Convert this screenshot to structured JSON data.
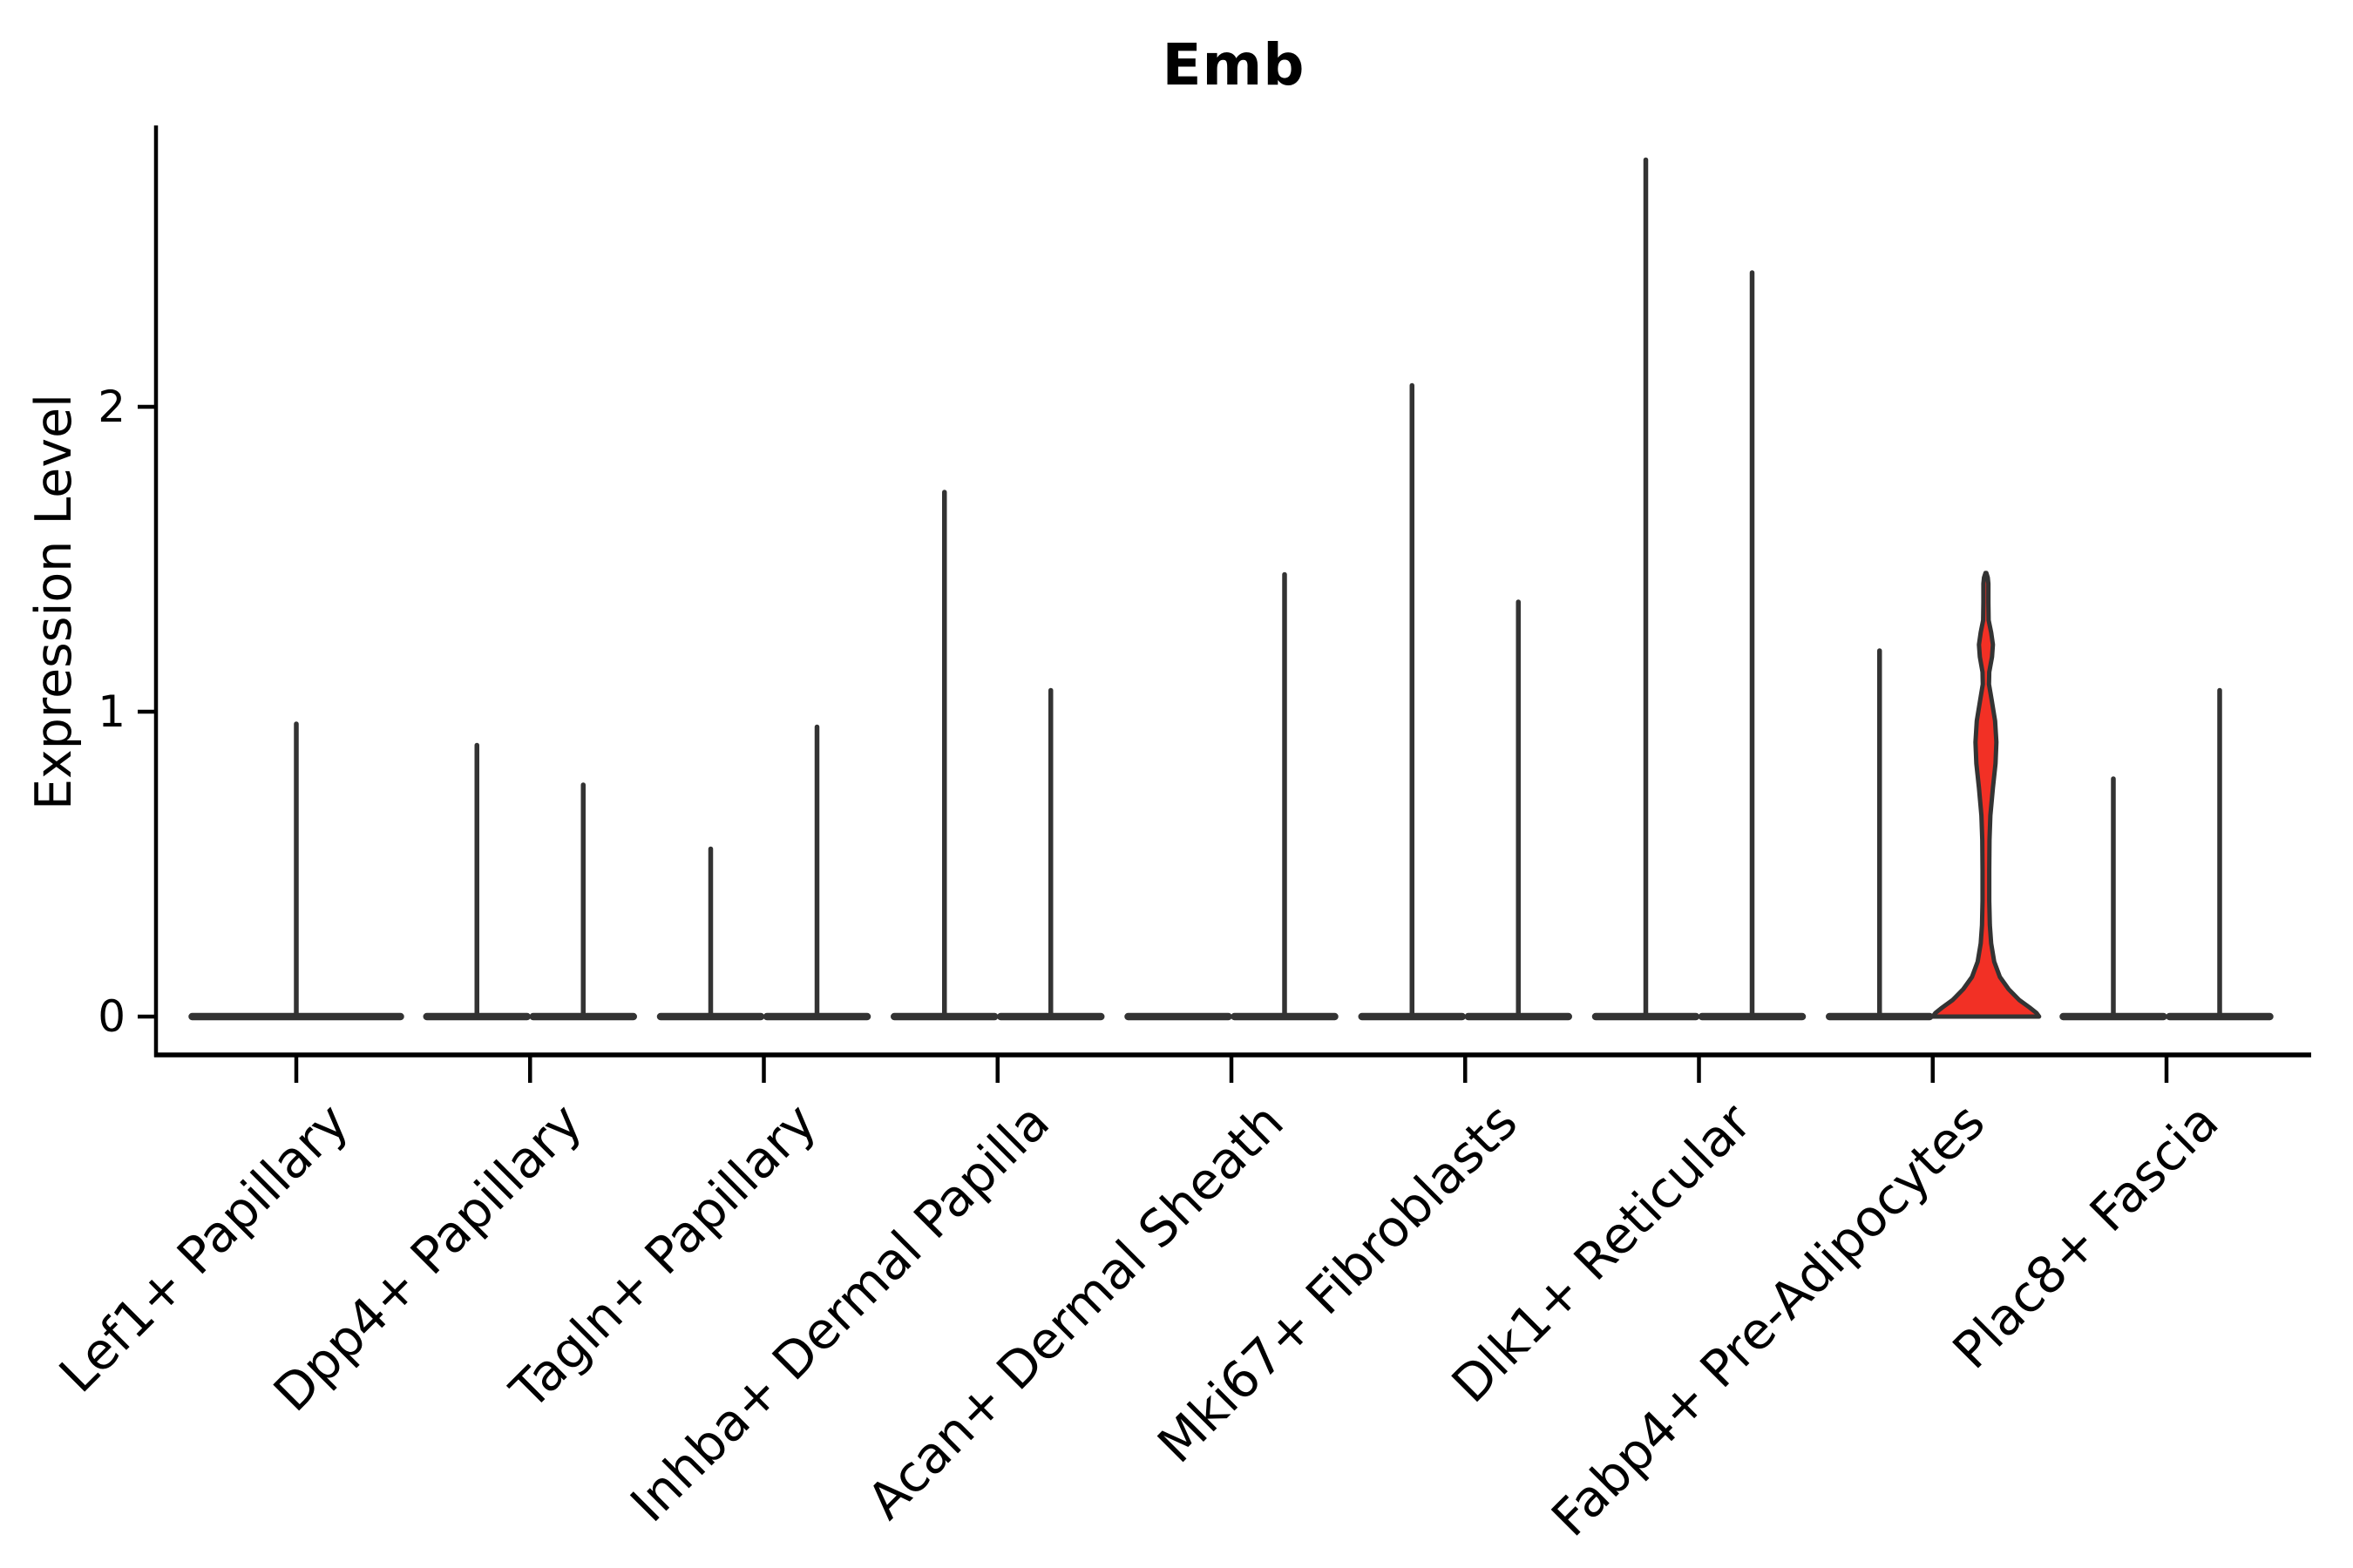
{
  "chart_data": {
    "type": "violin",
    "title": "Emb",
    "ylabel": "Expression Level",
    "xlabel": "",
    "ylim": [
      0,
      2.93
    ],
    "grid": false,
    "legend": "none",
    "yticks": [
      {
        "label": "0",
        "value": 0
      },
      {
        "label": "1",
        "value": 1
      },
      {
        "label": "2",
        "value": 2
      }
    ],
    "categories": [
      "Lef1+ Papillary",
      "Dpp4+ Papillary",
      "Tagln+ Papillary",
      "Inhba+ Dermal Papilla",
      "Acan+ Dermal Sheath",
      "Mki67+ Fibroblasts",
      "Dlk1+ Reticular",
      "Fabp4+ Pre-Adipocytes",
      "Plac8+ Fascia"
    ],
    "violins": [
      {
        "category_index": 0,
        "position": "full",
        "max_value": 0.96,
        "highlighted": false
      },
      {
        "category_index": 1,
        "position": "left",
        "max_value": 0.89,
        "highlighted": false
      },
      {
        "category_index": 1,
        "position": "right",
        "max_value": 0.76,
        "highlighted": false
      },
      {
        "category_index": 2,
        "position": "left",
        "max_value": 0.55,
        "highlighted": false
      },
      {
        "category_index": 2,
        "position": "right",
        "max_value": 0.95,
        "highlighted": false
      },
      {
        "category_index": 3,
        "position": "left",
        "max_value": 1.72,
        "highlighted": false
      },
      {
        "category_index": 3,
        "position": "right",
        "max_value": 1.07,
        "highlighted": false
      },
      {
        "category_index": 4,
        "position": "left",
        "max_value": null,
        "highlighted": false
      },
      {
        "category_index": 4,
        "position": "right",
        "max_value": 1.45,
        "highlighted": false
      },
      {
        "category_index": 5,
        "position": "left",
        "max_value": 2.07,
        "highlighted": false
      },
      {
        "category_index": 5,
        "position": "right",
        "max_value": 1.36,
        "highlighted": false
      },
      {
        "category_index": 6,
        "position": "left",
        "max_value": 2.81,
        "highlighted": false
      },
      {
        "category_index": 6,
        "position": "right",
        "max_value": 2.44,
        "highlighted": false
      },
      {
        "category_index": 7,
        "position": "left",
        "max_value": 1.2,
        "highlighted": false
      },
      {
        "category_index": 7,
        "position": "right",
        "max_value": 1.45,
        "highlighted": true
      },
      {
        "category_index": 8,
        "position": "left",
        "max_value": 0.78,
        "highlighted": false
      },
      {
        "category_index": 8,
        "position": "right",
        "max_value": 1.07,
        "highlighted": false
      }
    ],
    "highlighted_violin_profile": [
      [
        1.455,
        0.5
      ],
      [
        1.44,
        2.2
      ],
      [
        1.42,
        2.8
      ],
      [
        1.36,
        2.8
      ],
      [
        1.3,
        3.2
      ],
      [
        1.26,
        6.0
      ],
      [
        1.22,
        8.0
      ],
      [
        1.18,
        7.0
      ],
      [
        1.13,
        3.8
      ],
      [
        1.09,
        3.6
      ],
      [
        1.04,
        6.5
      ],
      [
        0.97,
        10.5
      ],
      [
        0.9,
        12.0
      ],
      [
        0.83,
        11.0
      ],
      [
        0.75,
        8.0
      ],
      [
        0.66,
        5.2
      ],
      [
        0.58,
        4.2
      ],
      [
        0.48,
        3.8
      ],
      [
        0.38,
        3.8
      ],
      [
        0.3,
        4.5
      ],
      [
        0.24,
        6.0
      ],
      [
        0.18,
        9.5
      ],
      [
        0.13,
        16
      ],
      [
        0.09,
        26
      ],
      [
        0.055,
        38
      ],
      [
        0.03,
        50
      ],
      [
        0.012,
        58
      ],
      [
        0.0,
        61
      ]
    ],
    "colors": {
      "violin_stroke": "#333333",
      "highlight_fill": "#F23025",
      "axis": "#000000",
      "text": "#000000"
    }
  }
}
